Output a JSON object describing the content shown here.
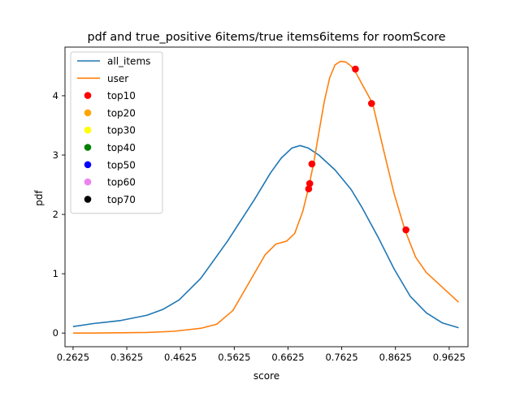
{
  "chart_data": {
    "type": "line",
    "title": "pdf and true_positive 6items/true items6items for roomScore",
    "xlabel": "score",
    "ylabel": "pdf",
    "xlim": [
      0.2475,
      0.9975
    ],
    "ylim": [
      -0.23,
      4.82
    ],
    "xticks": [
      0.2625,
      0.3625,
      0.4625,
      0.5625,
      0.6625,
      0.7625,
      0.8625,
      0.9625
    ],
    "xtick_labels": [
      "0.2625",
      "0.3625",
      "0.4625",
      "0.5625",
      "0.6625",
      "0.7625",
      "0.8625",
      "0.9625"
    ],
    "yticks": [
      0,
      1,
      2,
      3,
      4
    ],
    "ytick_labels": [
      "0",
      "1",
      "2",
      "3",
      "4"
    ],
    "grid": false,
    "legend_position": "top-left",
    "series": [
      {
        "name": "all_items",
        "color": "#1f77b4",
        "x": [
          0.2625,
          0.3,
          0.35,
          0.4,
          0.43,
          0.46,
          0.5,
          0.55,
          0.6,
          0.63,
          0.65,
          0.67,
          0.685,
          0.7,
          0.72,
          0.75,
          0.78,
          0.8,
          0.83,
          0.86,
          0.89,
          0.92,
          0.95,
          0.98
        ],
        "y": [
          0.11,
          0.16,
          0.21,
          0.3,
          0.4,
          0.56,
          0.92,
          1.55,
          2.25,
          2.7,
          2.95,
          3.12,
          3.16,
          3.12,
          3.0,
          2.75,
          2.42,
          2.12,
          1.62,
          1.08,
          0.62,
          0.34,
          0.17,
          0.09
        ]
      },
      {
        "name": "user",
        "color": "#ff7f0e",
        "x": [
          0.2625,
          0.3,
          0.35,
          0.4,
          0.45,
          0.5,
          0.53,
          0.56,
          0.59,
          0.62,
          0.64,
          0.66,
          0.675,
          0.69,
          0.7,
          0.71,
          0.72,
          0.73,
          0.74,
          0.75,
          0.76,
          0.77,
          0.78,
          0.79,
          0.8,
          0.82,
          0.84,
          0.86,
          0.88,
          0.9,
          0.92,
          0.95,
          0.98
        ],
        "y": [
          0.0,
          0.0,
          0.005,
          0.01,
          0.03,
          0.08,
          0.15,
          0.38,
          0.85,
          1.32,
          1.5,
          1.55,
          1.68,
          2.05,
          2.42,
          2.85,
          3.38,
          3.9,
          4.3,
          4.52,
          4.58,
          4.57,
          4.5,
          4.37,
          4.2,
          3.87,
          3.1,
          2.35,
          1.74,
          1.28,
          1.02,
          0.77,
          0.52
        ]
      }
    ],
    "scatter_series": [
      {
        "name": "top10",
        "color": "#ff0000",
        "x": [
          0.701,
          0.703,
          0.707,
          0.788,
          0.818,
          0.882
        ],
        "y": [
          2.43,
          2.52,
          2.85,
          4.45,
          3.87,
          1.74
        ]
      },
      {
        "name": "top20",
        "color": "#ffa500",
        "x": [],
        "y": []
      },
      {
        "name": "top30",
        "color": "#ffff00",
        "x": [],
        "y": []
      },
      {
        "name": "top40",
        "color": "#008000",
        "x": [],
        "y": []
      },
      {
        "name": "top50",
        "color": "#0000ff",
        "x": [],
        "y": []
      },
      {
        "name": "top60",
        "color": "#ee82ee",
        "x": [],
        "y": []
      },
      {
        "name": "top70",
        "color": "#000000",
        "x": [],
        "y": []
      }
    ]
  }
}
